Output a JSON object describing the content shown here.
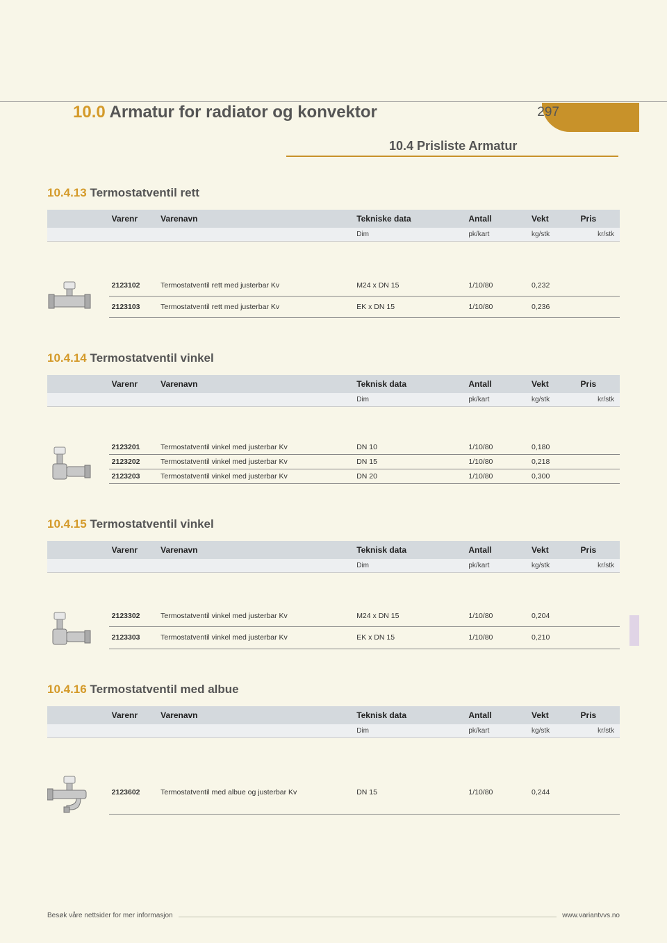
{
  "colors": {
    "page_bg": "#f8f6e8",
    "accent_gold": "#c8922a",
    "accent_gold_light": "#d49a2a",
    "header_bg": "#d4d9dd",
    "subhead_bg": "#edeff1",
    "text_dark": "#555",
    "tab_lilac": "#e0d4e6"
  },
  "page": {
    "title_num": "10.0",
    "title_text": "Armatur for radiator og konvektor",
    "page_number": "297",
    "subtitle": "10.4  Prisliste Armatur"
  },
  "columns": {
    "varenr": "Varenr",
    "varenavn": "Varenavn",
    "tekniske": "Tekniske data",
    "teknisk": "Teknisk data",
    "antall": "Antall",
    "vekt": "Vekt",
    "pris": "Pris",
    "dim": "Dim",
    "pkkart": "pk/kart",
    "kgstk": "kg/stk",
    "krstk": "kr/stk"
  },
  "sections": [
    {
      "num": "10.4.13",
      "title": "Termostatventil rett",
      "tech_header": "Tekniske data",
      "icon": "valve-straight",
      "rows": [
        {
          "nr": "2123102",
          "name": "Termostatventil rett med justerbar Kv",
          "dim": "M24 x DN 15",
          "ant": "1/10/80",
          "vekt": "0,232",
          "pris": ""
        },
        {
          "nr": "2123103",
          "name": "Termostatventil rett med justerbar Kv",
          "dim": "EK x DN 15",
          "ant": "1/10/80",
          "vekt": "0,236",
          "pris": ""
        }
      ]
    },
    {
      "num": "10.4.14",
      "title": "Termostatventil vinkel",
      "tech_header": "Teknisk data",
      "icon": "valve-angle",
      "rows": [
        {
          "nr": "2123201",
          "name": "Termostatventil vinkel med justerbar Kv",
          "dim": "DN 10",
          "ant": "1/10/80",
          "vekt": "0,180",
          "pris": ""
        },
        {
          "nr": "2123202",
          "name": "Termostatventil vinkel med justerbar Kv",
          "dim": "DN 15",
          "ant": "1/10/80",
          "vekt": "0,218",
          "pris": ""
        },
        {
          "nr": "2123203",
          "name": "Termostatventil vinkel med justerbar Kv",
          "dim": "DN 20",
          "ant": "1/10/80",
          "vekt": "0,300",
          "pris": ""
        }
      ]
    },
    {
      "num": "10.4.15",
      "title": "Termostatventil vinkel",
      "tech_header": "Teknisk data",
      "icon": "valve-angle",
      "rows": [
        {
          "nr": "2123302",
          "name": "Termostatventil vinkel med justerbar Kv",
          "dim": "M24 x DN 15",
          "ant": "1/10/80",
          "vekt": "0,204",
          "pris": ""
        },
        {
          "nr": "2123303",
          "name": "Termostatventil vinkel med justerbar Kv",
          "dim": "EK x DN 15",
          "ant": "1/10/80",
          "vekt": "0,210",
          "pris": ""
        }
      ]
    },
    {
      "num": "10.4.16",
      "title": "Termostatventil med albue",
      "tech_header": "Teknisk data",
      "icon": "valve-elbow",
      "rows": [
        {
          "nr": "2123602",
          "name": "Termostatventil med albue og justerbar Kv",
          "dim": "DN 15",
          "ant": "1/10/80",
          "vekt": "0,244",
          "pris": ""
        }
      ]
    }
  ],
  "footer": {
    "left": "Besøk våre nettsider for mer informasjon",
    "right": "www.variantvvs.no"
  }
}
